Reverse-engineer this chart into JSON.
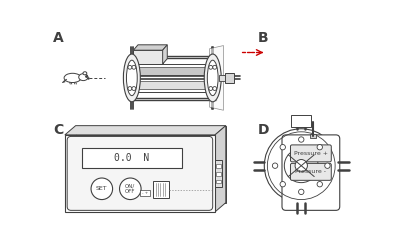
{
  "fig_width": 4.0,
  "fig_height": 2.45,
  "dpi": 100,
  "bg_color": "#ffffff",
  "line_color": "#404040",
  "label_A": "A",
  "label_B": "B",
  "label_C": "C",
  "label_D": "D",
  "label_fontsize": 10,
  "display_text": "0.0  N",
  "button1_text": "SET",
  "button2_text": "ON/\nOFF",
  "pressure_plus": "Pressure +",
  "pressure_minus": "Pressure -",
  "red_color": "#cc0000",
  "gray_fill": "#c8c8c8",
  "light_gray": "#e8e8e8",
  "mid_gray": "#d0d0d0"
}
